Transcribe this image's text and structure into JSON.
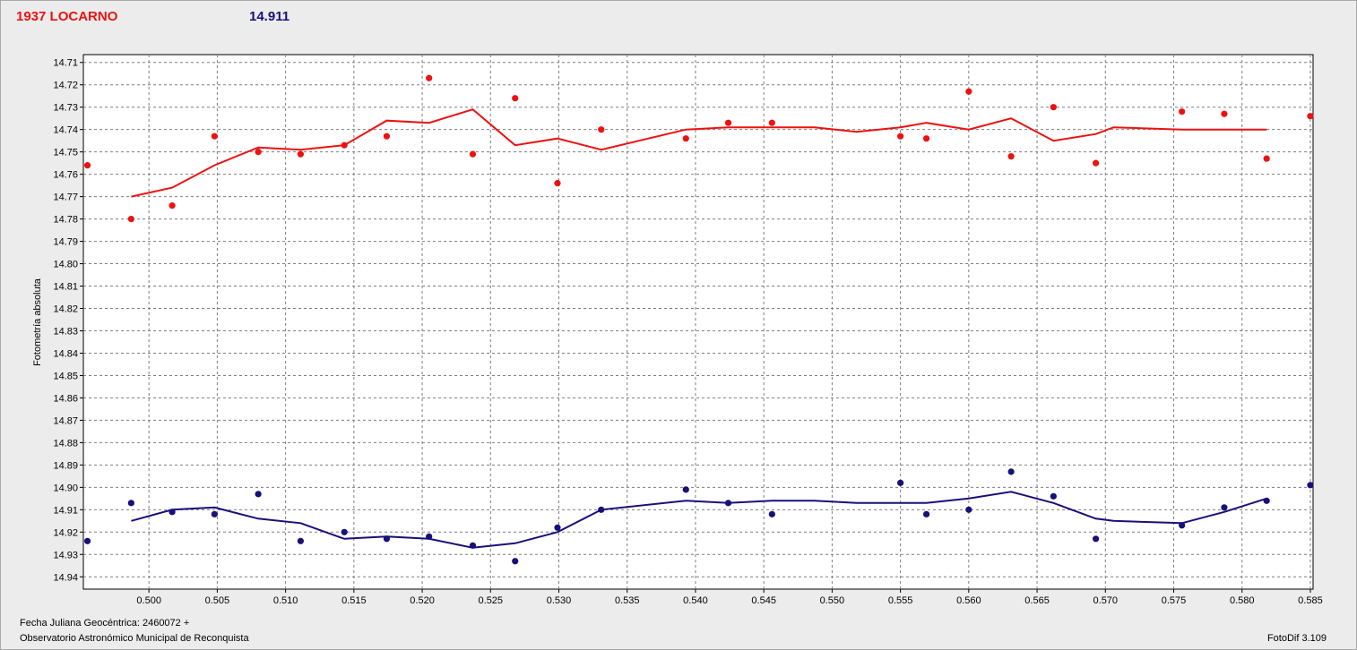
{
  "header": {
    "title": "1937 LOCARNO",
    "magnitude": "14.911"
  },
  "footer": {
    "date_label": "Fecha Juliana Geocéntrica: 2460072 +",
    "observer": "Observatorio Astronómico Municipal de Reconquista",
    "version": "FotoDif 3.109"
  },
  "colors": {
    "red_series": "#ee1111",
    "blue_series": "#17107a",
    "plot_background": "#ffffff",
    "grid": "#7f7f7f"
  },
  "chart_data": {
    "type": "scatter",
    "title": "",
    "xlabel": "",
    "ylabel": "Fotometría absoluta",
    "xlim": [
      0.4952,
      0.5852
    ],
    "ylim": [
      14.7065,
      14.9455
    ],
    "y_inverted": true,
    "grid": true,
    "x_ticks": [
      "0.500",
      "0.505",
      "0.510",
      "0.515",
      "0.520",
      "0.525",
      "0.530",
      "0.535",
      "0.540",
      "0.545",
      "0.550",
      "0.555",
      "0.560",
      "0.565",
      "0.570",
      "0.575",
      "0.580",
      "0.585"
    ],
    "y_ticks": [
      "14.71",
      "14.72",
      "14.73",
      "14.74",
      "14.75",
      "14.76",
      "14.77",
      "14.78",
      "14.79",
      "14.80",
      "14.81",
      "14.82",
      "14.83",
      "14.84",
      "14.85",
      "14.86",
      "14.87",
      "14.88",
      "14.89",
      "14.90",
      "14.91",
      "14.92",
      "14.93",
      "14.94"
    ],
    "series": [
      {
        "color": "#ee1111",
        "points": [
          [
            0.4955,
            14.756
          ],
          [
            0.4987,
            14.78
          ],
          [
            0.5017,
            14.774
          ],
          [
            0.5048,
            14.743
          ],
          [
            0.508,
            14.75
          ],
          [
            0.5111,
            14.751
          ],
          [
            0.5143,
            14.747
          ],
          [
            0.5174,
            14.743
          ],
          [
            0.5205,
            14.717
          ],
          [
            0.5237,
            14.751
          ],
          [
            0.5268,
            14.726
          ],
          [
            0.5299,
            14.764
          ],
          [
            0.5331,
            14.74
          ],
          [
            0.5393,
            14.744
          ],
          [
            0.5424,
            14.737
          ],
          [
            0.5456,
            14.737
          ],
          [
            0.555,
            14.743
          ],
          [
            0.5569,
            14.744
          ],
          [
            0.56,
            14.723
          ],
          [
            0.5631,
            14.752
          ],
          [
            0.5662,
            14.73
          ],
          [
            0.5693,
            14.755
          ],
          [
            0.5756,
            14.732
          ],
          [
            0.5787,
            14.733
          ],
          [
            0.5818,
            14.753
          ],
          [
            0.585,
            14.734
          ]
        ],
        "line": [
          [
            0.4987,
            14.77
          ],
          [
            0.5017,
            14.766
          ],
          [
            0.5048,
            14.756
          ],
          [
            0.508,
            14.748
          ],
          [
            0.5111,
            14.749
          ],
          [
            0.5143,
            14.747
          ],
          [
            0.5174,
            14.736
          ],
          [
            0.5205,
            14.737
          ],
          [
            0.5237,
            14.731
          ],
          [
            0.5268,
            14.747
          ],
          [
            0.5299,
            14.744
          ],
          [
            0.5331,
            14.749
          ],
          [
            0.5393,
            14.74
          ],
          [
            0.5424,
            14.739
          ],
          [
            0.5456,
            14.739
          ],
          [
            0.5487,
            14.739
          ],
          [
            0.5518,
            14.741
          ],
          [
            0.555,
            14.739
          ],
          [
            0.5569,
            14.737
          ],
          [
            0.56,
            14.74
          ],
          [
            0.5631,
            14.735
          ],
          [
            0.5662,
            14.745
          ],
          [
            0.5693,
            14.742
          ],
          [
            0.5706,
            14.739
          ],
          [
            0.5756,
            14.74
          ],
          [
            0.5818,
            14.74
          ]
        ]
      },
      {
        "color": "#17107a",
        "points": [
          [
            0.4955,
            14.924
          ],
          [
            0.4987,
            14.907
          ],
          [
            0.5017,
            14.911
          ],
          [
            0.5048,
            14.912
          ],
          [
            0.508,
            14.903
          ],
          [
            0.5111,
            14.924
          ],
          [
            0.5143,
            14.92
          ],
          [
            0.5174,
            14.923
          ],
          [
            0.5205,
            14.922
          ],
          [
            0.5237,
            14.926
          ],
          [
            0.5268,
            14.933
          ],
          [
            0.5299,
            14.918
          ],
          [
            0.5331,
            14.91
          ],
          [
            0.5393,
            14.901
          ],
          [
            0.5424,
            14.907
          ],
          [
            0.5456,
            14.912
          ],
          [
            0.555,
            14.898
          ],
          [
            0.5569,
            14.912
          ],
          [
            0.56,
            14.91
          ],
          [
            0.5631,
            14.893
          ],
          [
            0.5662,
            14.904
          ],
          [
            0.5693,
            14.923
          ],
          [
            0.5756,
            14.917
          ],
          [
            0.5787,
            14.909
          ],
          [
            0.5818,
            14.906
          ]
        ],
        "line": [
          [
            0.4987,
            14.915
          ],
          [
            0.5017,
            14.91
          ],
          [
            0.5048,
            14.909
          ],
          [
            0.508,
            14.914
          ],
          [
            0.5111,
            14.916
          ],
          [
            0.5143,
            14.923
          ],
          [
            0.5174,
            14.922
          ],
          [
            0.5205,
            14.923
          ],
          [
            0.5237,
            14.927
          ],
          [
            0.5268,
            14.925
          ],
          [
            0.5299,
            14.92
          ],
          [
            0.5331,
            14.91
          ],
          [
            0.5393,
            14.906
          ],
          [
            0.5424,
            14.907
          ],
          [
            0.5456,
            14.906
          ],
          [
            0.5487,
            14.906
          ],
          [
            0.5518,
            14.907
          ],
          [
            0.555,
            14.907
          ],
          [
            0.5569,
            14.907
          ],
          [
            0.56,
            14.905
          ],
          [
            0.5631,
            14.902
          ],
          [
            0.5662,
            14.907
          ],
          [
            0.5693,
            14.914
          ],
          [
            0.5706,
            14.915
          ],
          [
            0.5756,
            14.916
          ],
          [
            0.5787,
            14.911
          ],
          [
            0.5818,
            14.905
          ]
        ]
      }
    ],
    "extra_blue_point": [
      0.585,
      14.899
    ]
  }
}
